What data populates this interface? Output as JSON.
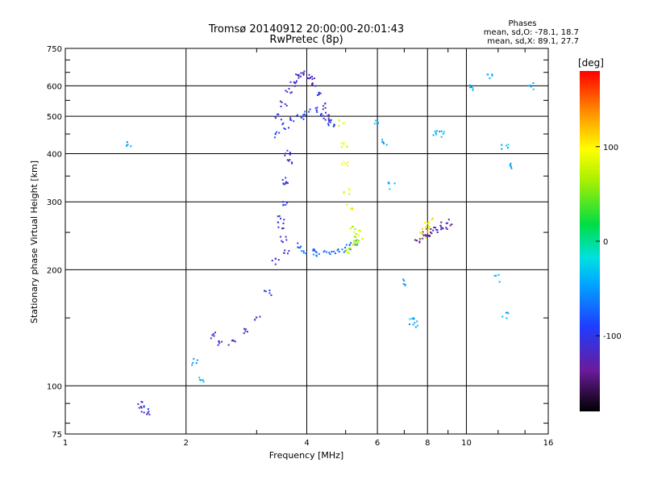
{
  "chart_data": {
    "type": "scatter",
    "title": "Tromsø 20140912 20:00:00-20:01:43",
    "subtitle": "RwPretec (8p)",
    "xlabel": "Frequency [MHz]",
    "ylabel": "Stationary phase Virtual Height [km]",
    "x_scale": "log",
    "y_scale": "log",
    "xlim": [
      1,
      16
    ],
    "ylim": [
      75,
      750
    ],
    "grid": true,
    "xticks": [
      1,
      2,
      4,
      6,
      8,
      10,
      16
    ],
    "xtick_labels": [
      "1",
      "2",
      "4",
      "6",
      "8",
      "10",
      "16"
    ],
    "yticks": [
      75,
      100,
      200,
      300,
      400,
      500,
      600,
      750
    ],
    "ytick_labels": [
      "75",
      "100",
      "200",
      "300",
      "400",
      "500",
      "600",
      "750"
    ],
    "stats": {
      "heading": "Phases",
      "line_o": "mean, sd,O: -78.1, 18.7",
      "line_x": "mean, sd,X:  89.1, 27.7"
    },
    "colorbar": {
      "label": "[deg]",
      "range": [
        -180,
        180
      ],
      "ticks": [
        100,
        0,
        -100
      ],
      "tick_labels": [
        "100",
        "0",
        "-100"
      ]
    },
    "traces": [
      {
        "x": [
          2.35,
          2.45,
          2.6,
          2.8,
          3.0,
          3.2,
          3.35,
          3.45,
          3.55,
          3.6
        ],
        "y": [
          135,
          130,
          130,
          138,
          150,
          175,
          210,
          260,
          330,
          400
        ],
        "phase": -110
      },
      {
        "x": [
          3.45,
          3.5,
          3.55,
          3.6,
          3.5,
          3.55
        ],
        "y": [
          270,
          300,
          340,
          380,
          240,
          220
        ],
        "phase": -105
      },
      {
        "x": [
          3.4,
          3.5,
          3.6,
          3.7,
          3.8,
          3.9,
          4.0,
          4.1,
          4.2,
          4.3,
          4.4,
          4.5,
          4.6
        ],
        "y": [
          500,
          540,
          580,
          610,
          630,
          640,
          640,
          630,
          600,
          570,
          530,
          500,
          480
        ],
        "phase": -110
      },
      {
        "x": [
          3.4,
          3.55,
          3.7,
          3.85,
          4.0,
          4.2,
          4.4,
          4.6
        ],
        "y": [
          450,
          470,
          490,
          500,
          510,
          520,
          500,
          480
        ],
        "phase": -90
      },
      {
        "x": [
          3.8,
          3.95,
          4.1,
          4.3,
          4.5,
          4.7,
          4.9,
          5.1,
          5.3
        ],
        "y": [
          230,
          225,
          222,
          220,
          220,
          222,
          225,
          230,
          235
        ],
        "phase": -70
      },
      {
        "x": [
          5.1,
          5.2,
          5.3,
          5.4,
          5.35,
          5.25
        ],
        "y": [
          225,
          230,
          235,
          240,
          248,
          255
        ],
        "phase": 70
      },
      {
        "x": [
          7.6,
          7.8,
          7.95,
          8.1,
          8.3,
          8.5,
          8.8,
          9.1
        ],
        "y": [
          240,
          245,
          248,
          250,
          252,
          255,
          260,
          265
        ],
        "phase": -130
      },
      {
        "x": [
          7.8,
          7.9,
          8.0,
          8.1
        ],
        "y": [
          245,
          255,
          262,
          268
        ],
        "phase": 100
      },
      {
        "x": [
          1.55,
          1.57,
          1.6
        ],
        "y": [
          89,
          87,
          86
        ],
        "phase": -110
      },
      {
        "x": [
          4.9,
          4.95,
          5.0,
          5.05,
          5.1
        ],
        "y": [
          480,
          420,
          380,
          320,
          290
        ],
        "phase": 90
      },
      {
        "x": [
          1.45,
          2.1,
          2.2,
          6.5,
          6.9,
          7.3,
          10.3,
          11.5,
          12.5,
          13.0,
          14.5,
          8.4,
          8.7,
          6.2,
          6.0,
          7.5,
          12.0,
          12.5
        ],
        "y": [
          425,
          115,
          103,
          330,
          185,
          147,
          590,
          640,
          420,
          370,
          600,
          450,
          450,
          430,
          480,
          145,
          190,
          152
        ],
        "phase": -40
      }
    ]
  }
}
